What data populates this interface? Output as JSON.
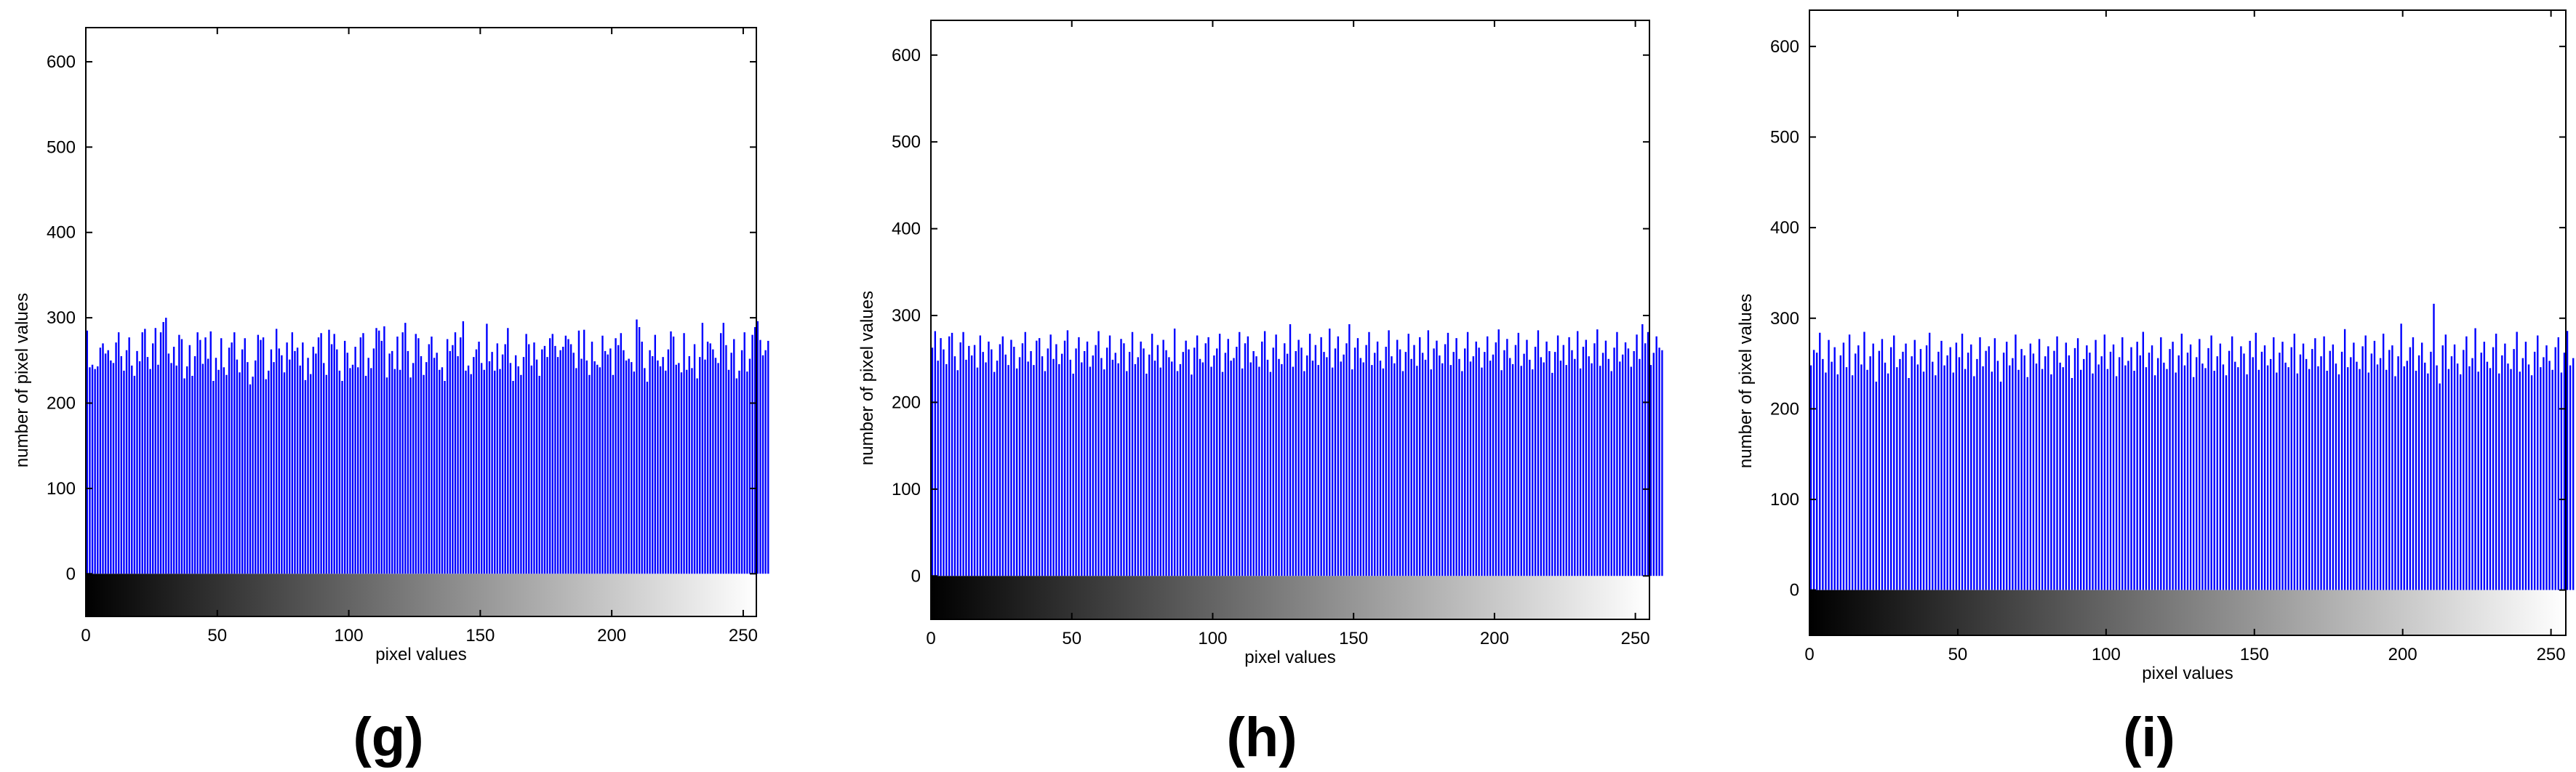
{
  "figure": {
    "panels": [
      {
        "label": "(g)"
      },
      {
        "label": "(h)"
      },
      {
        "label": "(i)"
      }
    ]
  },
  "chart_data": [
    {
      "type": "bar",
      "xlabel": "pixel values",
      "ylabel": "number of pixel values",
      "xlim": [
        0,
        255
      ],
      "ylim": [
        -50,
        640
      ],
      "xticks": [
        0,
        50,
        100,
        150,
        200,
        250
      ],
      "yticks": [
        0,
        100,
        200,
        300,
        400,
        500,
        600
      ],
      "grid": false,
      "colorbar": "grayscale",
      "bar_color": "#0000ff",
      "values": [
        285,
        242,
        245,
        240,
        243,
        265,
        270,
        258,
        262,
        250,
        247,
        271,
        283,
        255,
        238,
        262,
        277,
        244,
        232,
        261,
        249,
        283,
        287,
        254,
        240,
        270,
        288,
        245,
        283,
        295,
        300,
        258,
        247,
        266,
        244,
        280,
        275,
        229,
        243,
        268,
        232,
        255,
        283,
        274,
        246,
        277,
        252,
        284,
        226,
        253,
        239,
        276,
        242,
        233,
        265,
        271,
        283,
        251,
        236,
        263,
        276,
        248,
        222,
        231,
        250,
        280,
        274,
        277,
        228,
        238,
        263,
        248,
        287,
        264,
        256,
        236,
        271,
        251,
        283,
        261,
        265,
        244,
        271,
        227,
        253,
        234,
        266,
        258,
        277,
        282,
        247,
        233,
        286,
        269,
        281,
        263,
        238,
        226,
        273,
        259,
        241,
        245,
        266,
        242,
        277,
        282,
        232,
        253,
        241,
        264,
        288,
        285,
        273,
        290,
        230,
        258,
        261,
        240,
        278,
        239,
        283,
        294,
        261,
        230,
        247,
        281,
        276,
        255,
        233,
        248,
        269,
        278,
        253,
        259,
        239,
        242,
        226,
        275,
        261,
        268,
        283,
        255,
        277,
        296,
        238,
        244,
        234,
        254,
        263,
        272,
        247,
        239,
        293,
        249,
        260,
        238,
        270,
        240,
        257,
        269,
        288,
        247,
        226,
        256,
        243,
        233,
        254,
        281,
        269,
        244,
        271,
        251,
        232,
        263,
        267,
        254,
        276,
        281,
        267,
        254,
        262,
        266,
        279,
        275,
        269,
        259,
        241,
        285,
        252,
        286,
        250,
        233,
        272,
        249,
        245,
        242,
        279,
        261,
        257,
        264,
        233,
        276,
        268,
        282,
        262,
        250,
        252,
        248,
        237,
        298,
        289,
        272,
        241,
        225,
        262,
        255,
        280,
        250,
        243,
        254,
        238,
        263,
        284,
        278,
        245,
        247,
        236,
        282,
        239,
        255,
        241,
        269,
        229,
        254,
        294,
        251,
        272,
        270,
        263,
        253,
        247,
        282,
        294,
        268,
        239,
        259,
        275,
        229,
        238,
        262,
        283,
        237,
        252,
        280,
        289,
        296,
        274,
        256,
        262,
        273
      ]
    },
    {
      "type": "bar",
      "xlabel": "pixel values",
      "ylabel": "number of pixel values",
      "xlim": [
        0,
        255
      ],
      "ylim": [
        -50,
        640
      ],
      "xticks": [
        0,
        50,
        100,
        150,
        200,
        250
      ],
      "yticks": [
        0,
        100,
        200,
        300,
        400,
        500,
        600
      ],
      "grid": false,
      "colorbar": "grayscale",
      "bar_color": "#0000ff",
      "values": [
        263,
        282,
        248,
        274,
        261,
        244,
        276,
        280,
        253,
        237,
        269,
        281,
        249,
        265,
        254,
        266,
        240,
        277,
        258,
        246,
        270,
        261,
        235,
        248,
        267,
        276,
        255,
        243,
        272,
        264,
        239,
        252,
        268,
        281,
        247,
        259,
        243,
        271,
        274,
        253,
        236,
        262,
        278,
        250,
        267,
        244,
        256,
        271,
        283,
        249,
        233,
        262,
        275,
        246,
        259,
        270,
        241,
        254,
        266,
        282,
        251,
        238,
        263,
        277,
        249,
        257,
        245,
        273,
        268,
        236,
        258,
        281,
        244,
        252,
        270,
        262,
        233,
        255,
        279,
        248,
        266,
        240,
        272,
        260,
        252,
        247,
        285,
        236,
        244,
        258,
        271,
        261,
        232,
        263,
        277,
        250,
        246,
        268,
        275,
        241,
        254,
        262,
        279,
        235,
        257,
        273,
        248,
        251,
        264,
        281,
        239,
        268,
        276,
        246,
        259,
        253,
        241,
        270,
        282,
        249,
        235,
        263,
        278,
        250,
        244,
        268,
        256,
        290,
        241,
        259,
        272,
        263,
        236,
        254,
        279,
        248,
        266,
        243,
        275,
        258,
        252,
        285,
        240,
        262,
        276,
        247,
        255,
        268,
        290,
        238,
        263,
        274,
        251,
        246,
        266,
        281,
        243,
        257,
        270,
        248,
        239,
        264,
        283,
        253,
        245,
        272,
        261,
        236,
        258,
        279,
        250,
        266,
        242,
        275,
        257,
        249,
        283,
        238,
        262,
        271,
        254,
        245,
        267,
        280,
        243,
        258,
        274,
        250,
        236,
        262,
        281,
        247,
        253,
        270,
        263,
        240,
        258,
        276,
        248,
        255,
        269,
        284,
        237,
        260,
        273,
        251,
        244,
        266,
        280,
        242,
        256,
        272,
        249,
        238,
        264,
        283,
        252,
        246,
        270,
        259,
        234,
        258,
        277,
        248,
        266,
        243,
        275,
        260,
        250,
        282,
        239,
        264,
        272,
        253,
        245,
        268,
        284,
        242,
        257,
        271,
        250,
        236,
        263,
        281,
        247,
        255,
        269,
        262,
        241,
        259,
        278,
        250,
        290,
        268,
        281,
        243,
        257,
        276,
        263,
        260
      ]
    },
    {
      "type": "bar",
      "xlabel": "pixel values",
      "ylabel": "number of pixel values",
      "xlim": [
        0,
        255
      ],
      "ylim": [
        -50,
        640
      ],
      "xticks": [
        0,
        50,
        100,
        150,
        200,
        250
      ],
      "yticks": [
        0,
        100,
        200,
        300,
        400,
        500,
        600
      ],
      "grid": false,
      "colorbar": "grayscale",
      "bar_color": "#0000ff",
      "values": [
        248,
        265,
        262,
        284,
        255,
        240,
        276,
        252,
        268,
        238,
        259,
        273,
        246,
        282,
        237,
        261,
        270,
        249,
        285,
        243,
        258,
        272,
        230,
        264,
        277,
        251,
        239,
        268,
        281,
        246,
        255,
        263,
        272,
        234,
        258,
        276,
        249,
        266,
        241,
        270,
        284,
        252,
        237,
        263,
        275,
        248,
        259,
        268,
        240,
        273,
        257,
        283,
        244,
        262,
        271,
        236,
        255,
        279,
        247,
        264,
        269,
        241,
        278,
        253,
        230,
        262,
        274,
        248,
        256,
        282,
        243,
        266,
        259,
        235,
        272,
        261,
        250,
        277,
        244,
        258,
        269,
        238,
        264,
        280,
        251,
        246,
        273,
        259,
        234,
        267,
        278,
        243,
        255,
        270,
        262,
        239,
        276,
        249,
        258,
        282,
        244,
        263,
        271,
        236,
        257,
        279,
        248,
        253,
        268,
        242,
        274,
        259,
        285,
        246,
        262,
        270,
        237,
        256,
        279,
        251,
        244,
        266,
        274,
        240,
        259,
        283,
        248,
        262,
        271,
        235,
        257,
        277,
        250,
        245,
        267,
        281,
        242,
        258,
        272,
        249,
        237,
        264,
        280,
        252,
        246,
        269,
        261,
        238,
        275,
        257,
        284,
        243,
        263,
        270,
        248,
        255,
        279,
        240,
        262,
        274,
        251,
        246,
        268,
        283,
        239,
        260,
        272,
        255,
        244,
        266,
        278,
        247,
        258,
        280,
        242,
        264,
        271,
        250,
        238,
        263,
        288,
        246,
        257,
        273,
        252,
        244,
        269,
        281,
        240,
        261,
        275,
        249,
        256,
        283,
        243,
        265,
        270,
        236,
        258,
        294,
        247,
        253,
        268,
        279,
        242,
        259,
        273,
        251,
        239,
        263,
        316,
        248,
        228,
        270,
        282,
        244,
        258,
        271,
        250,
        238,
        265,
        280,
        247,
        256,
        289,
        241,
        262,
        274,
        252,
        245,
        268,
        283,
        239,
        259,
        272,
        250,
        244,
        266,
        285,
        241,
        256,
        274,
        249,
        237,
        263,
        281,
        246,
        257,
        270,
        253,
        243,
        268,
        279,
        240,
        262,
        286,
        248,
        256
      ]
    }
  ]
}
